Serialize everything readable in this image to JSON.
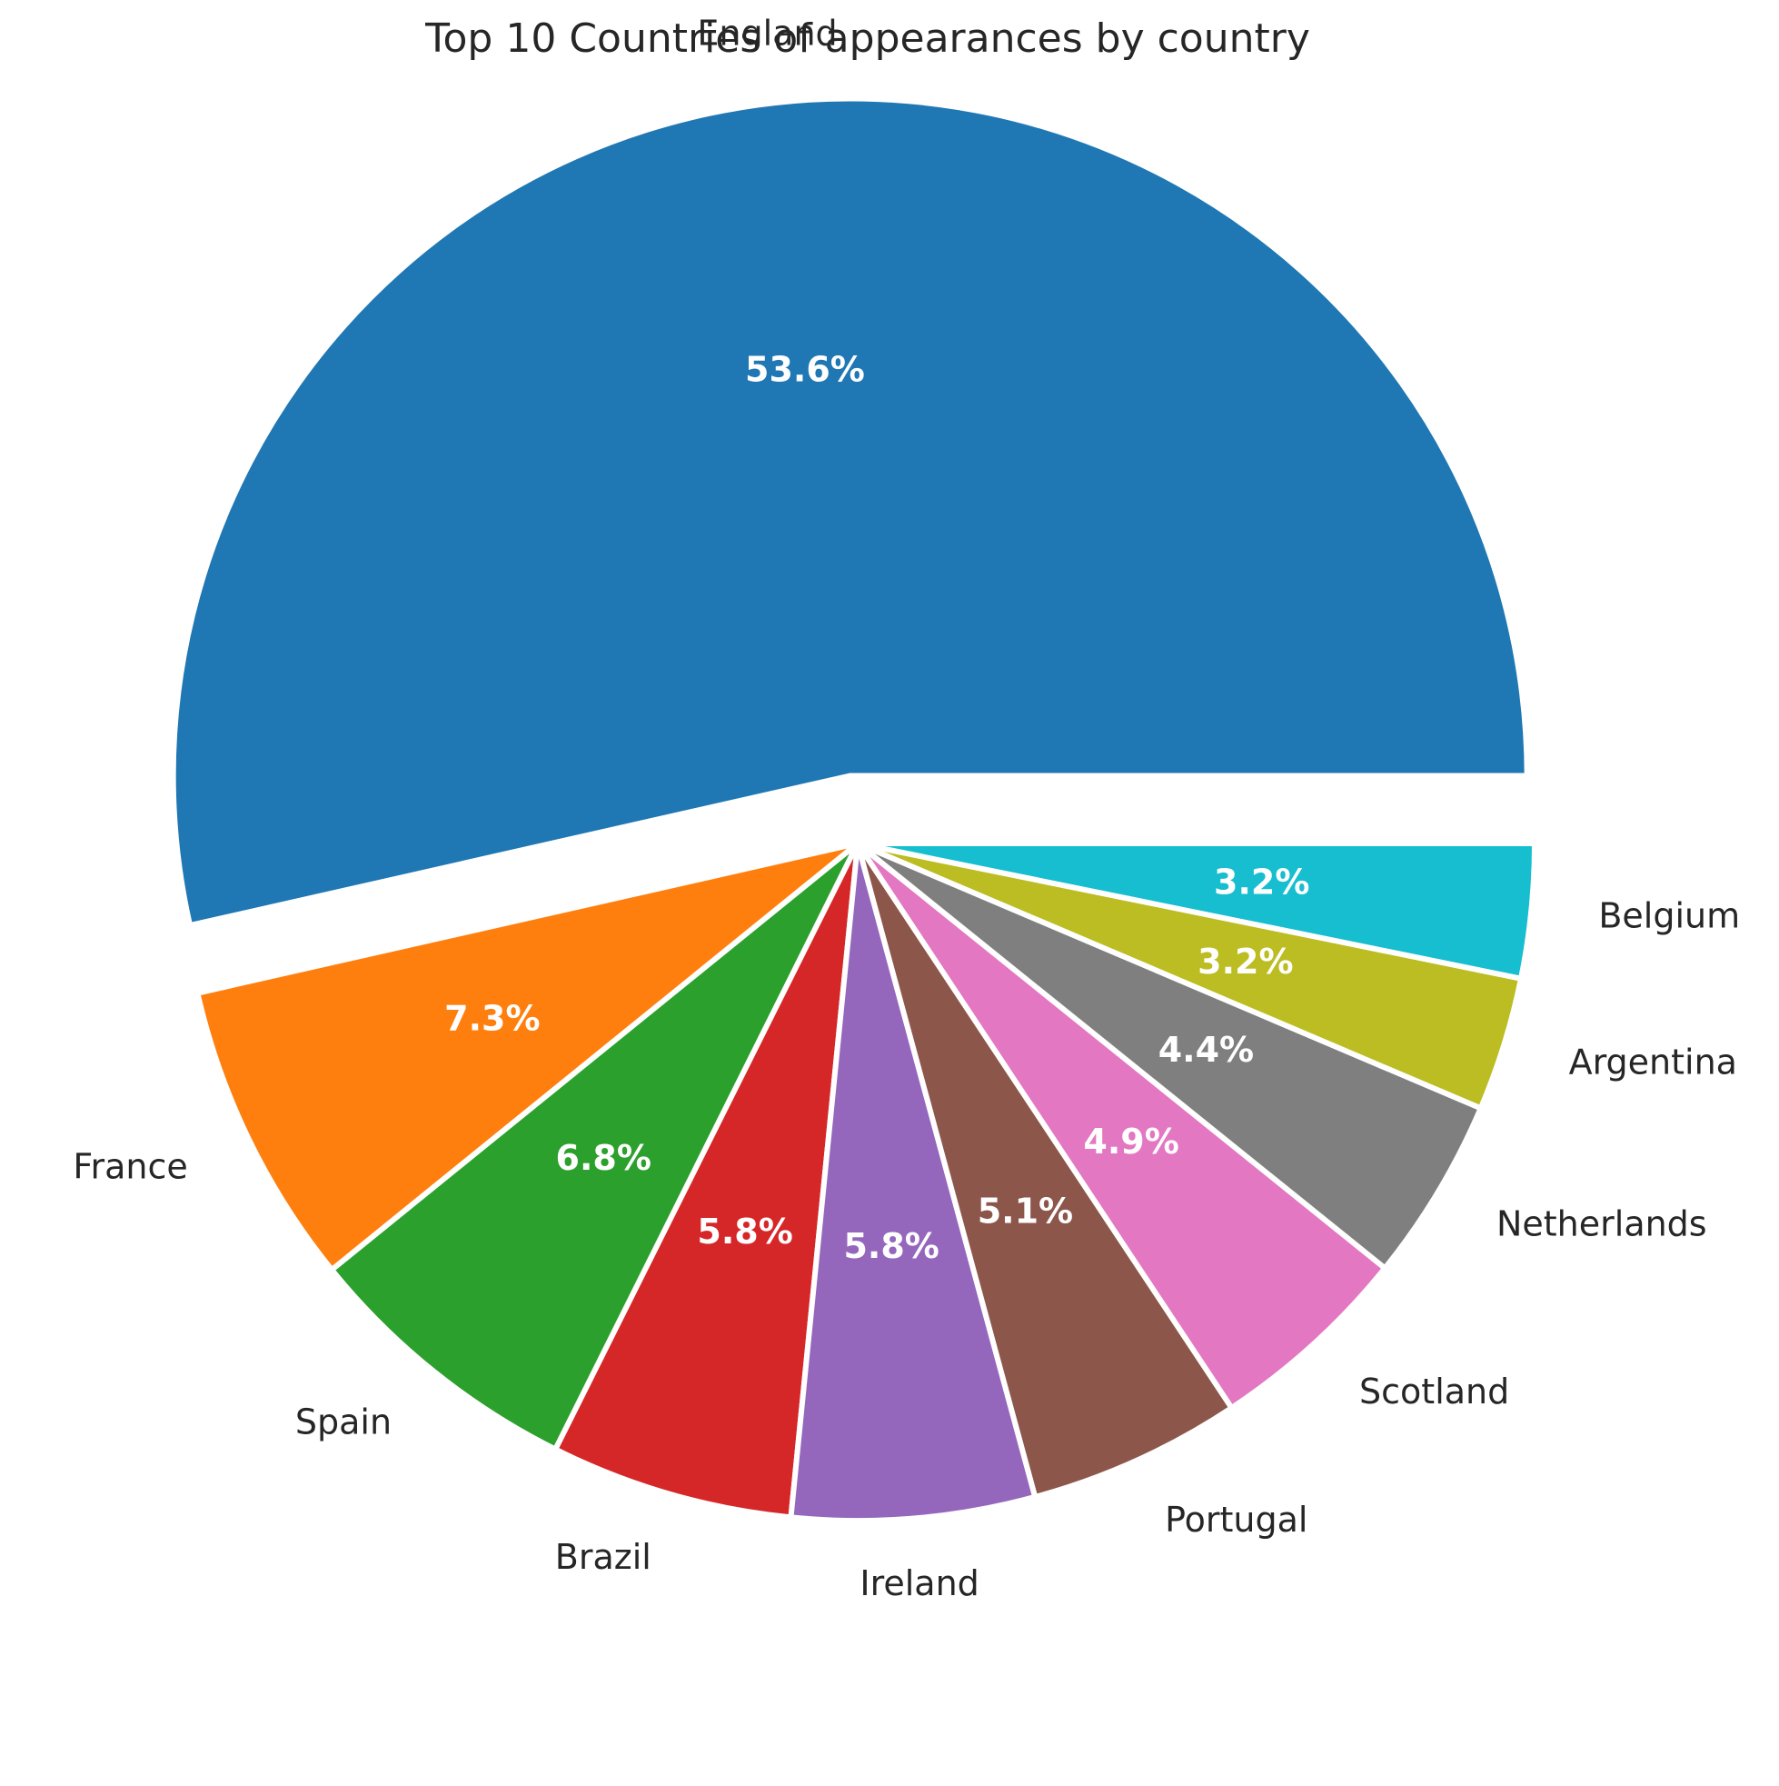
{
  "chart_data": {
    "type": "pie",
    "title": "Top 10 Countries of appearances by country",
    "categories": [
      "England",
      "France",
      "Spain",
      "Brazil",
      "Ireland",
      "Portugal",
      "Scotland",
      "Netherlands",
      "Argentina",
      "Belgium"
    ],
    "values": [
      53.6,
      7.3,
      6.8,
      5.8,
      5.8,
      5.1,
      4.9,
      4.4,
      3.2,
      3.2
    ],
    "value_labels": [
      "53.6%",
      "7.3%",
      "6.8%",
      "5.8%",
      "5.8%",
      "5.1%",
      "4.9%",
      "4.4%",
      "3.2%",
      "3.2%"
    ],
    "colors": [
      "#1f77b4",
      "#ff7f0e",
      "#2ca02c",
      "#d62728",
      "#9467bd",
      "#8c564b",
      "#e377c2",
      "#7f7f7f",
      "#bcbd22",
      "#17becf"
    ],
    "exploded": [
      "England"
    ],
    "start_angle_deg": 0,
    "direction": "counterclockwise",
    "legend": "none"
  }
}
